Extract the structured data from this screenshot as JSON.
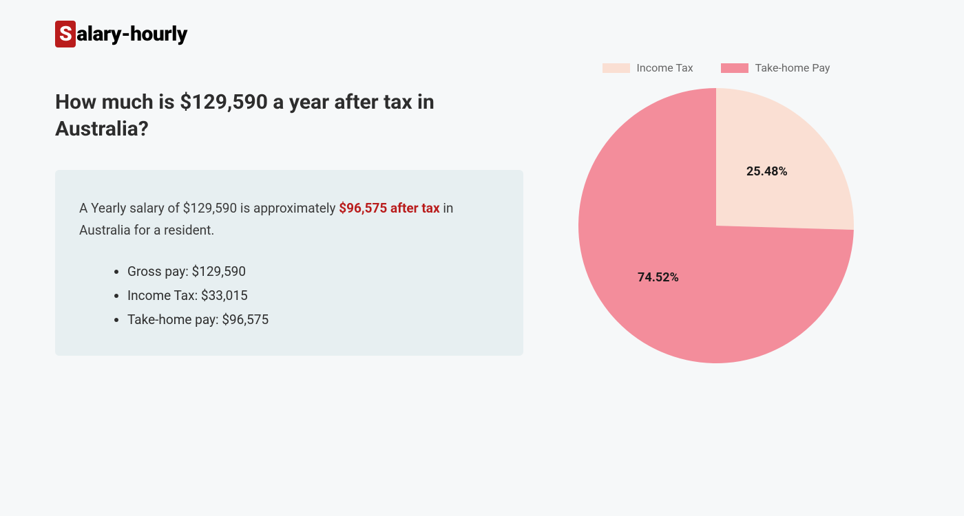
{
  "logo": {
    "badge_letter": "S",
    "rest": "alary-hourly"
  },
  "heading": "How much is $129,590 a year after tax in Australia?",
  "summary": {
    "prefix": "A Yearly salary of $129,590 is approximately ",
    "highlight": "$96,575 after tax",
    "suffix": " in Australia for a resident."
  },
  "bullets": [
    "Gross pay: $129,590",
    "Income Tax: $33,015",
    "Take-home pay: $96,575"
  ],
  "chart": {
    "type": "pie",
    "radius": 200,
    "background_color": "#f6f8f9",
    "slices": [
      {
        "label": "Income Tax",
        "value": 25.48,
        "pct_label": "25.48%",
        "color": "#fadfd3"
      },
      {
        "label": "Take-home Pay",
        "value": 74.52,
        "pct_label": "74.52%",
        "color": "#f38d9b"
      }
    ],
    "legend_text_color": "#666666",
    "label_text_color": "#1a1a1a",
    "label_fontsize": 18,
    "legend_fontsize": 16,
    "start_angle_deg": -90
  },
  "colors": {
    "page_bg": "#f6f8f9",
    "box_bg": "#e7eff1",
    "heading": "#2d2d2d",
    "body_text": "#3a3a3a",
    "highlight": "#b91c1c",
    "logo_badge_bg": "#b91c1c"
  }
}
